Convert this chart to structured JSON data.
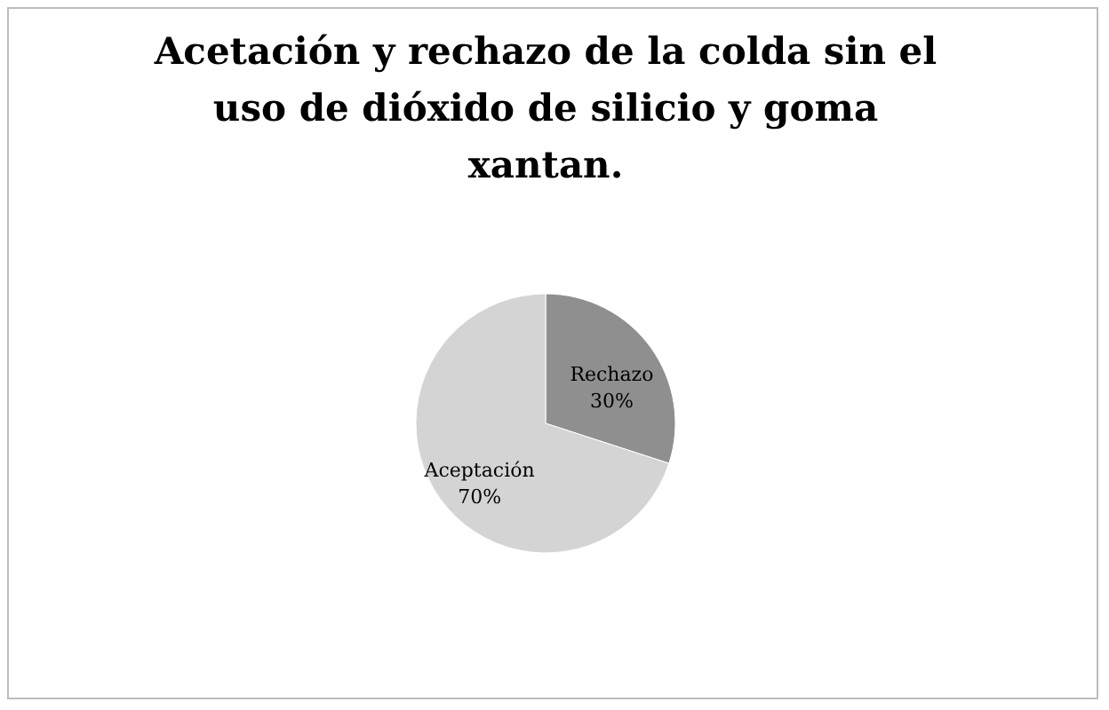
{
  "chart_data": {
    "type": "pie",
    "title": "Acetación y rechazo de la colda sin el uso de dióxido de silicio y goma xantan.",
    "categories": [
      "Rechazo",
      "Aceptación"
    ],
    "values": [
      30,
      70
    ],
    "value_labels": [
      "30%",
      "70%"
    ],
    "colors": [
      "#8f8f8f",
      "#d4d4d4"
    ]
  }
}
